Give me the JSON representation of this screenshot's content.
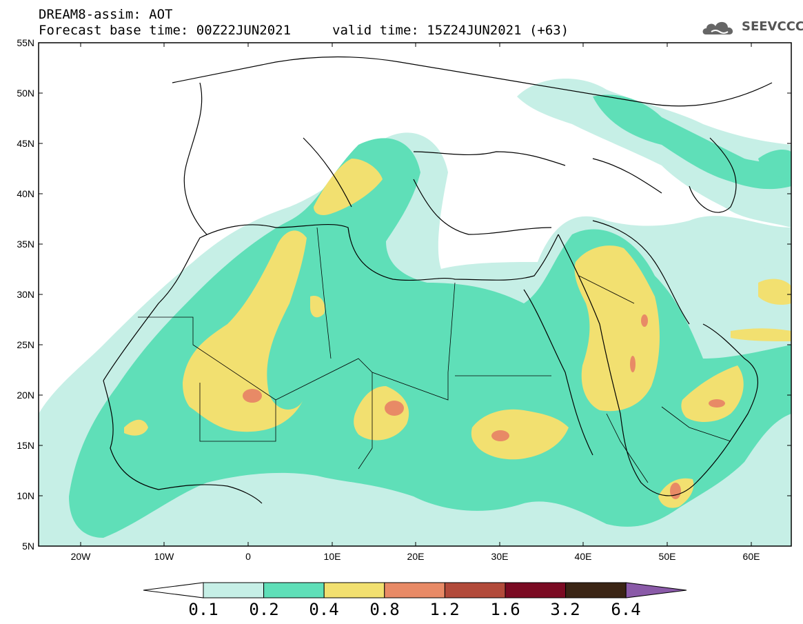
{
  "header": {
    "model_line": "DREAM8-assim: AOT",
    "base_time": "Forecast base time: 00Z22JUN2021",
    "valid_time": "valid time: 15Z24JUN2021 (+63)"
  },
  "logo": {
    "text": "SEEVCCC",
    "icon": "cloud-icon"
  },
  "axes": {
    "lat_ticks": [
      "55N",
      "50N",
      "45N",
      "40N",
      "35N",
      "30N",
      "25N",
      "20N",
      "15N",
      "10N",
      "5N"
    ],
    "lon_ticks": [
      "20W",
      "10W",
      "0",
      "10E",
      "20E",
      "30E",
      "40E",
      "50E",
      "60E"
    ]
  },
  "colorbar": {
    "labels": [
      "0.1",
      "0.2",
      "0.4",
      "0.8",
      "1.2",
      "1.6",
      "3.2",
      "6.4"
    ],
    "colors": [
      "#ffffff",
      "#c6efe6",
      "#5fdfb8",
      "#f2e070",
      "#e88a66",
      "#b24a3a",
      "#7a0a22",
      "#3a2414",
      "#8a5aa8"
    ]
  },
  "colors": {
    "c01": "#c6efe6",
    "c02": "#5fdfb8",
    "c04": "#f2e070",
    "c08": "#e88a66"
  }
}
